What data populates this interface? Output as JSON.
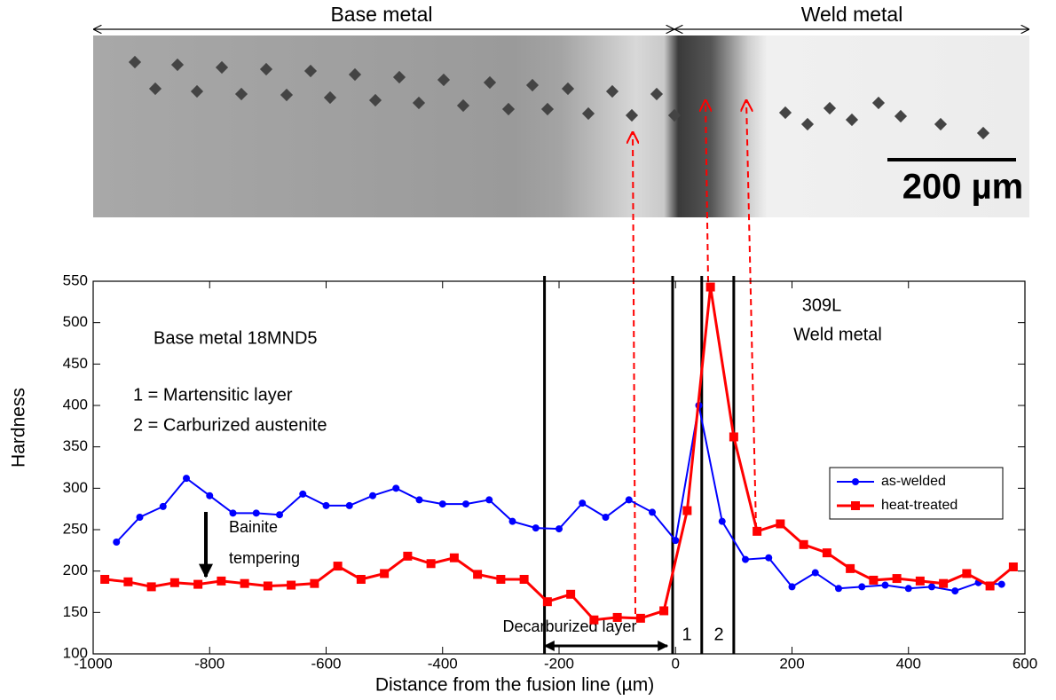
{
  "image": {
    "left_label": "Base metal",
    "right_label": "Weld metal",
    "scale_label": "200 µm"
  },
  "chart_data": {
    "type": "line",
    "xlabel": "Distance from the fusion line (µm)",
    "ylabel": "Hardness",
    "xlim": [
      -1000,
      600
    ],
    "xticks": [
      -1000,
      -800,
      -600,
      -400,
      -200,
      0,
      200,
      400,
      600
    ],
    "ylim": [
      100,
      550
    ],
    "yticks": [
      100,
      150,
      200,
      250,
      300,
      350,
      400,
      450,
      500,
      550
    ],
    "legend": "right",
    "series": [
      {
        "name": "as-welded",
        "color": "#0000ff",
        "marker": "circle",
        "x": [
          -960,
          -920,
          -880,
          -840,
          -800,
          -760,
          -720,
          -680,
          -640,
          -600,
          -560,
          -520,
          -480,
          -440,
          -400,
          -360,
          -320,
          -280,
          -240,
          -200,
          -160,
          -120,
          -80,
          -40,
          0,
          40,
          80,
          120,
          160,
          200,
          240,
          280,
          320,
          360,
          400,
          440,
          480,
          520,
          560
        ],
        "values": [
          235,
          265,
          278,
          312,
          291,
          270,
          270,
          268,
          293,
          279,
          279,
          291,
          300,
          286,
          281,
          281,
          286,
          260,
          252,
          251,
          282,
          265,
          286,
          271,
          237,
          400,
          260,
          214,
          216,
          181,
          198,
          179,
          181,
          183,
          179,
          181,
          176,
          186,
          184
        ]
      },
      {
        "name": "heat-treated",
        "color": "#ff0000",
        "marker": "square",
        "x": [
          -980,
          -940,
          -900,
          -860,
          -820,
          -780,
          -740,
          -700,
          -660,
          -620,
          -580,
          -540,
          -500,
          -460,
          -420,
          -380,
          -340,
          -300,
          -260,
          -220,
          -180,
          -140,
          -100,
          -60,
          -20,
          20,
          60,
          100,
          140,
          180,
          220,
          260,
          300,
          340,
          380,
          420,
          460,
          500,
          540,
          580
        ],
        "values": [
          190,
          187,
          181,
          186,
          184,
          188,
          185,
          182,
          183,
          185,
          206,
          190,
          197,
          218,
          209,
          216,
          196,
          190,
          190,
          163,
          172,
          141,
          144,
          143,
          152,
          273,
          543,
          362,
          248,
          257,
          232,
          222,
          203,
          189,
          191,
          188,
          185,
          197,
          182,
          205
        ]
      }
    ],
    "boundaries": [
      -225,
      -5,
      45,
      100
    ],
    "annotations": {
      "weld_title": "309L",
      "weld_sub": "Weld metal",
      "base": "Base metal 18MND5",
      "layer1": "1 = Martensitic layer",
      "layer2": "2 = Carburized austenite",
      "bainite1": "Bainite",
      "bainite2": "tempering",
      "decarb": "Decarburized layer",
      "zone1": "1",
      "zone2": "2"
    }
  }
}
